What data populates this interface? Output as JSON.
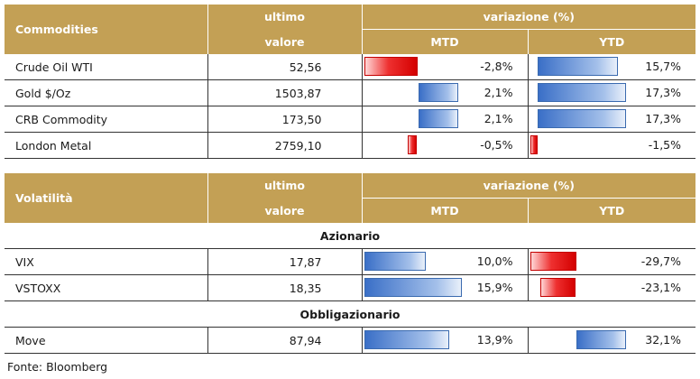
{
  "commodities": {
    "header": {
      "title": "Commodities",
      "ultimo_line1": "ultimo",
      "ultimo_line2": "valore",
      "variazione": "variazione (%)",
      "mtd": "MTD",
      "ytd": "YTD"
    },
    "rows": [
      {
        "name": "Crude Oil WTI",
        "value": "52,56",
        "mtd": "-2,8%",
        "ytd": "15,7%",
        "mtd_num": -2.8,
        "ytd_num": 15.7
      },
      {
        "name": "Gold $/Oz",
        "value": "1503,87",
        "mtd": "2,1%",
        "ytd": "17,3%",
        "mtd_num": 2.1,
        "ytd_num": 17.3
      },
      {
        "name": "CRB Commodity",
        "value": "173,50",
        "mtd": "2,1%",
        "ytd": "17,3%",
        "mtd_num": 2.1,
        "ytd_num": 17.3
      },
      {
        "name": "London Metal",
        "value": "2759,10",
        "mtd": "-0,5%",
        "ytd": "-1,5%",
        "mtd_num": -0.5,
        "ytd_num": -1.5
      }
    ]
  },
  "volatilita": {
    "header": {
      "title": "Volatilità",
      "ultimo_line1": "ultimo",
      "ultimo_line2": "valore",
      "variazione": "variazione (%)",
      "mtd": "MTD",
      "ytd": "YTD"
    },
    "azionario_label": "Azionario",
    "azionario_rows": [
      {
        "name": "VIX",
        "value": "17,87",
        "mtd": "10,0%",
        "ytd": "-29,7%",
        "mtd_num": 10.0,
        "ytd_num": -29.7
      },
      {
        "name": "VSTOXX",
        "value": "18,35",
        "mtd": "15,9%",
        "ytd": "-23,1%",
        "mtd_num": 15.9,
        "ytd_num": -23.1
      }
    ],
    "obbligazionario_label": "Obbligazionario",
    "obbligazionario_rows": [
      {
        "name": "Move",
        "value": "87,94",
        "mtd": "13,9%",
        "ytd": "32,1%",
        "mtd_num": 13.9,
        "ytd_num": 32.1
      }
    ]
  },
  "source": "Fonte: Bloomberg"
}
